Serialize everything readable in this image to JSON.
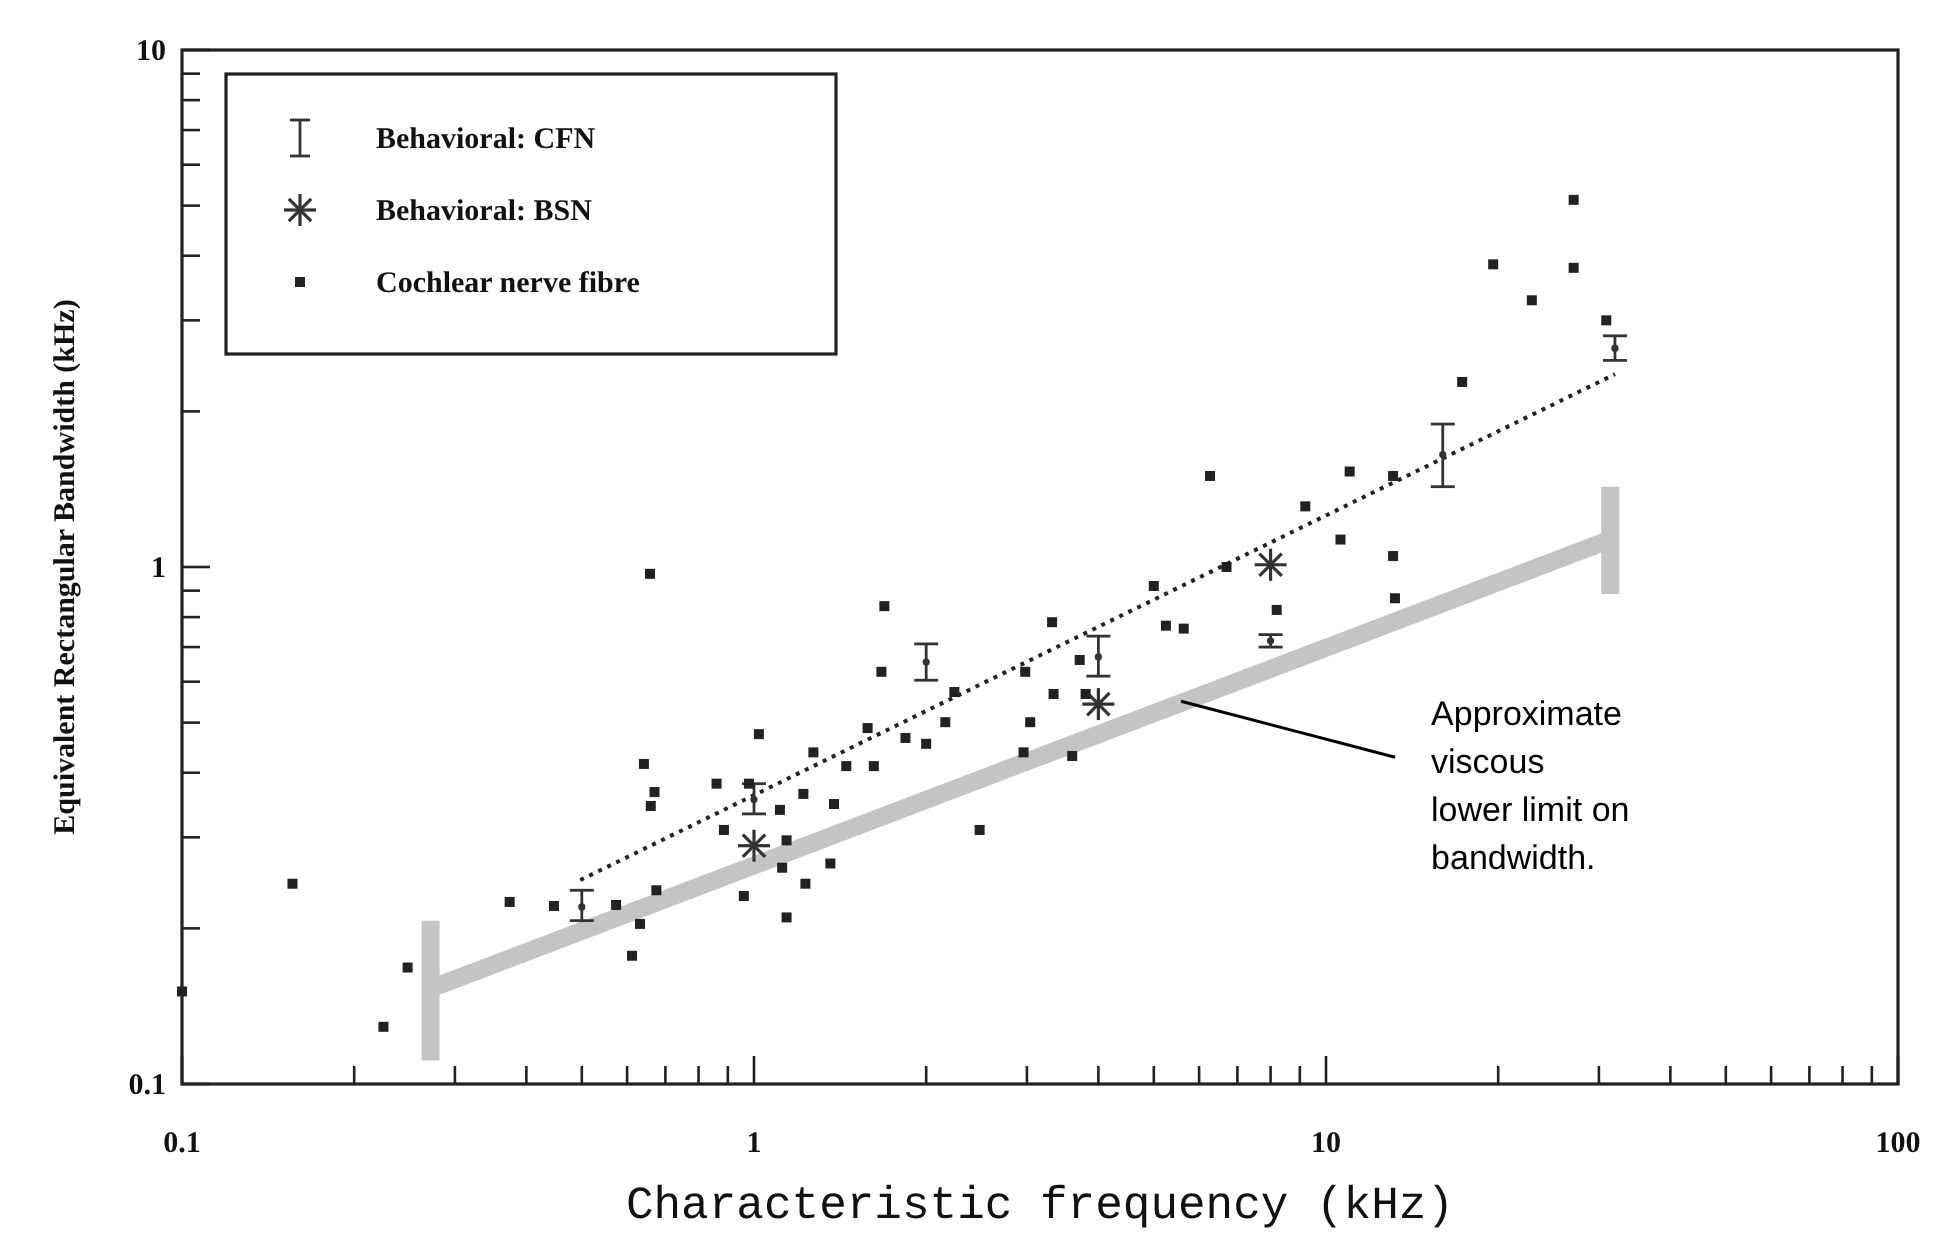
{
  "chart_data": {
    "type": "scatter",
    "xlabel": "Characteristic frequency (kHz)",
    "ylabel": "Equivalent Rectangular Bandwidth (kHz)",
    "log": "xy",
    "grid": false,
    "legend": "top left",
    "xlim": [
      0.1,
      100
    ],
    "ylim": [
      0.1,
      10
    ],
    "xticks": [
      0.1,
      {
        "value": 0.2,
        "label": null
      },
      {
        "value": 0.3,
        "label": null
      },
      {
        "value": 0.4,
        "label": null
      },
      {
        "value": 0.5,
        "label": null
      },
      {
        "value": 0.6,
        "label": null
      },
      {
        "value": 0.7,
        "label": null
      },
      {
        "value": 0.8,
        "label": null
      },
      {
        "value": 0.9,
        "label": null
      },
      1,
      {
        "value": 2,
        "label": null
      },
      {
        "value": 3,
        "label": null
      },
      {
        "value": 4,
        "label": null
      },
      {
        "value": 5,
        "label": null
      },
      {
        "value": 6,
        "label": null
      },
      {
        "value": 7,
        "label": null
      },
      {
        "value": 8,
        "label": null
      },
      {
        "value": 9,
        "label": null
      },
      10,
      {
        "value": 20,
        "label": null
      },
      {
        "value": 30,
        "label": null
      },
      {
        "value": 40,
        "label": null
      },
      {
        "value": 50,
        "label": null
      },
      {
        "value": 60,
        "label": null
      },
      {
        "value": 70,
        "label": null
      },
      {
        "value": 80,
        "label": null
      },
      {
        "value": 90,
        "label": null
      },
      100
    ],
    "yticks": [
      0.1,
      {
        "value": 0.2,
        "label": null
      },
      {
        "value": 0.3,
        "label": null
      },
      {
        "value": 0.4,
        "label": null
      },
      {
        "value": 0.5,
        "label": null
      },
      {
        "value": 0.6,
        "label": null
      },
      {
        "value": 0.7,
        "label": null
      },
      {
        "value": 0.8,
        "label": null
      },
      {
        "value": 0.9,
        "label": null
      },
      1,
      {
        "value": 2,
        "label": null
      },
      {
        "value": 3,
        "label": null
      },
      {
        "value": 4,
        "label": null
      },
      {
        "value": 5,
        "label": null
      },
      {
        "value": 6,
        "label": null
      },
      {
        "value": 7,
        "label": null
      },
      {
        "value": 8,
        "label": null
      },
      {
        "value": 9,
        "label": null
      },
      10
    ],
    "series": [
      {
        "type": "line",
        "color": "#c4c4c4",
        "line_style": "solid",
        "marker": "none",
        "x": [
          0.272,
          31.4
        ],
        "values": [
          0.153,
          1.13
        ]
      },
      {
        "type": "line",
        "color": "#c4c4c4",
        "line_style": "solid",
        "marker": "none",
        "x": [
          0.272,
          0.272
        ],
        "values": [
          0.111,
          0.207
        ]
      },
      {
        "type": "line",
        "color": "#c4c4c4",
        "line_style": "solid",
        "marker": "none",
        "x": [
          31.4,
          31.4
        ],
        "values": [
          0.887,
          1.43
        ]
      },
      {
        "type": "line",
        "color": "#222222",
        "line_style": "dotted",
        "marker": "none",
        "x": [
          0.497,
          32
        ],
        "values": [
          0.248,
          2.36
        ]
      },
      {
        "name": "Behavioral: CFN",
        "color": "#333333",
        "marker": "circle",
        "x": [
          0.5,
          1,
          2,
          4,
          8,
          16,
          32
        ],
        "values": [
          0.22,
          0.355,
          0.655,
          0.67,
          0.72,
          1.65,
          2.65
        ],
        "errors": [
          [
            0.207,
            0.237
          ],
          [
            0.333,
            0.381
          ],
          [
            0.604,
            0.71
          ],
          [
            0.615,
            0.735
          ],
          [
            0.7,
            0.74
          ],
          [
            1.43,
            1.89
          ],
          [
            2.51,
            2.8
          ]
        ]
      },
      {
        "name": "Behavioral: BSN",
        "color": "#333333",
        "marker": "cross",
        "x": [
          1,
          4,
          8
        ],
        "values": [
          0.289,
          0.543,
          1.01
        ]
      },
      {
        "name": "Cochlear nerve fibre",
        "color": "#222222",
        "marker": "square",
        "x": [
          0.1,
          0.156,
          0.225,
          0.248,
          0.374,
          0.447,
          0.574,
          0.612,
          0.632,
          0.658,
          0.642,
          0.67,
          0.66,
          0.675,
          0.86,
          0.98,
          1.02,
          0.886,
          1.11,
          1.14,
          0.96,
          1.14,
          1.12,
          1.23,
          1.22,
          1.27,
          1.69,
          1.67,
          3.32,
          3.71,
          2.98,
          3.34,
          3.8,
          2.24,
          2.16,
          3.04,
          2.96,
          3.6,
          1.84,
          2.0,
          1.58,
          1.45,
          1.62,
          1.38,
          2.48,
          1.36,
          5.0,
          5.25,
          5.64,
          6.7,
          8.2,
          10.6,
          9.2,
          27.1,
          19.6,
          27.1,
          22.9,
          30.9,
          17.3,
          6.27,
          11.0,
          13.1,
          13.1,
          13.2
        ],
        "values": [
          0.151,
          0.244,
          0.129,
          0.168,
          0.225,
          0.221,
          0.222,
          0.177,
          0.204,
          0.97,
          0.416,
          0.367,
          0.345,
          0.237,
          0.381,
          0.381,
          0.475,
          0.31,
          0.339,
          0.296,
          0.231,
          0.21,
          0.262,
          0.244,
          0.364,
          0.438,
          0.84,
          0.627,
          0.782,
          0.661,
          0.627,
          0.568,
          0.568,
          0.573,
          0.501,
          0.501,
          0.438,
          0.431,
          0.467,
          0.455,
          0.488,
          0.412,
          0.412,
          0.348,
          0.31,
          0.267,
          0.919,
          0.77,
          0.76,
          1.0,
          0.826,
          1.13,
          1.31,
          5.13,
          3.85,
          3.79,
          3.28,
          3.0,
          2.28,
          1.5,
          1.53,
          1.5,
          1.05,
          0.87
        ]
      }
    ],
    "annotations": [
      {
        "text": "Approximate\nviscous\nlower limit on\nbandwidth.",
        "x": 5.58,
        "y": 0.55
      }
    ]
  }
}
